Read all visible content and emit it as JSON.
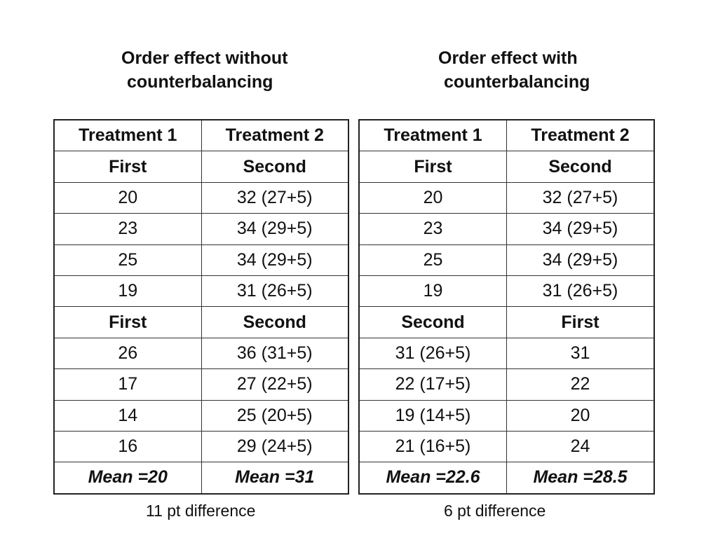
{
  "left": {
    "title_line1": "Order effect without",
    "title_line2": "counterbalancing",
    "header": [
      "Treatment 1",
      "Treatment 2"
    ],
    "block1_order": [
      "First",
      "Second"
    ],
    "block1_rows": [
      [
        "20",
        "32 (27+5)"
      ],
      [
        "23",
        "34 (29+5)"
      ],
      [
        "25",
        "34 (29+5)"
      ],
      [
        "19",
        "31 (26+5)"
      ]
    ],
    "block2_order": [
      "First",
      "Second"
    ],
    "block2_rows": [
      [
        "26",
        "36 (31+5)"
      ],
      [
        "17",
        "27 (22+5)"
      ],
      [
        "14",
        "25 (20+5)"
      ],
      [
        "16",
        "29 (24+5)"
      ]
    ],
    "means": [
      "Mean =20",
      "Mean =31"
    ],
    "footnote": "11 pt difference"
  },
  "right": {
    "title_line1": "Order effect with",
    "title_line2": "counterbalancing",
    "header": [
      "Treatment 1",
      "Treatment 2"
    ],
    "block1_order": [
      "First",
      "Second"
    ],
    "block1_rows": [
      [
        "20",
        "32 (27+5)"
      ],
      [
        "23",
        "34 (29+5)"
      ],
      [
        "25",
        "34 (29+5)"
      ],
      [
        "19",
        "31 (26+5)"
      ]
    ],
    "block2_order": [
      "Second",
      "First"
    ],
    "block2_rows": [
      [
        "31 (26+5)",
        "31"
      ],
      [
        "22 (17+5)",
        "22"
      ],
      [
        "19 (14+5)",
        "20"
      ],
      [
        "21 (16+5)",
        "24"
      ]
    ],
    "means": [
      "Mean =22.6",
      "Mean =28.5"
    ],
    "footnote": "6 pt difference"
  }
}
